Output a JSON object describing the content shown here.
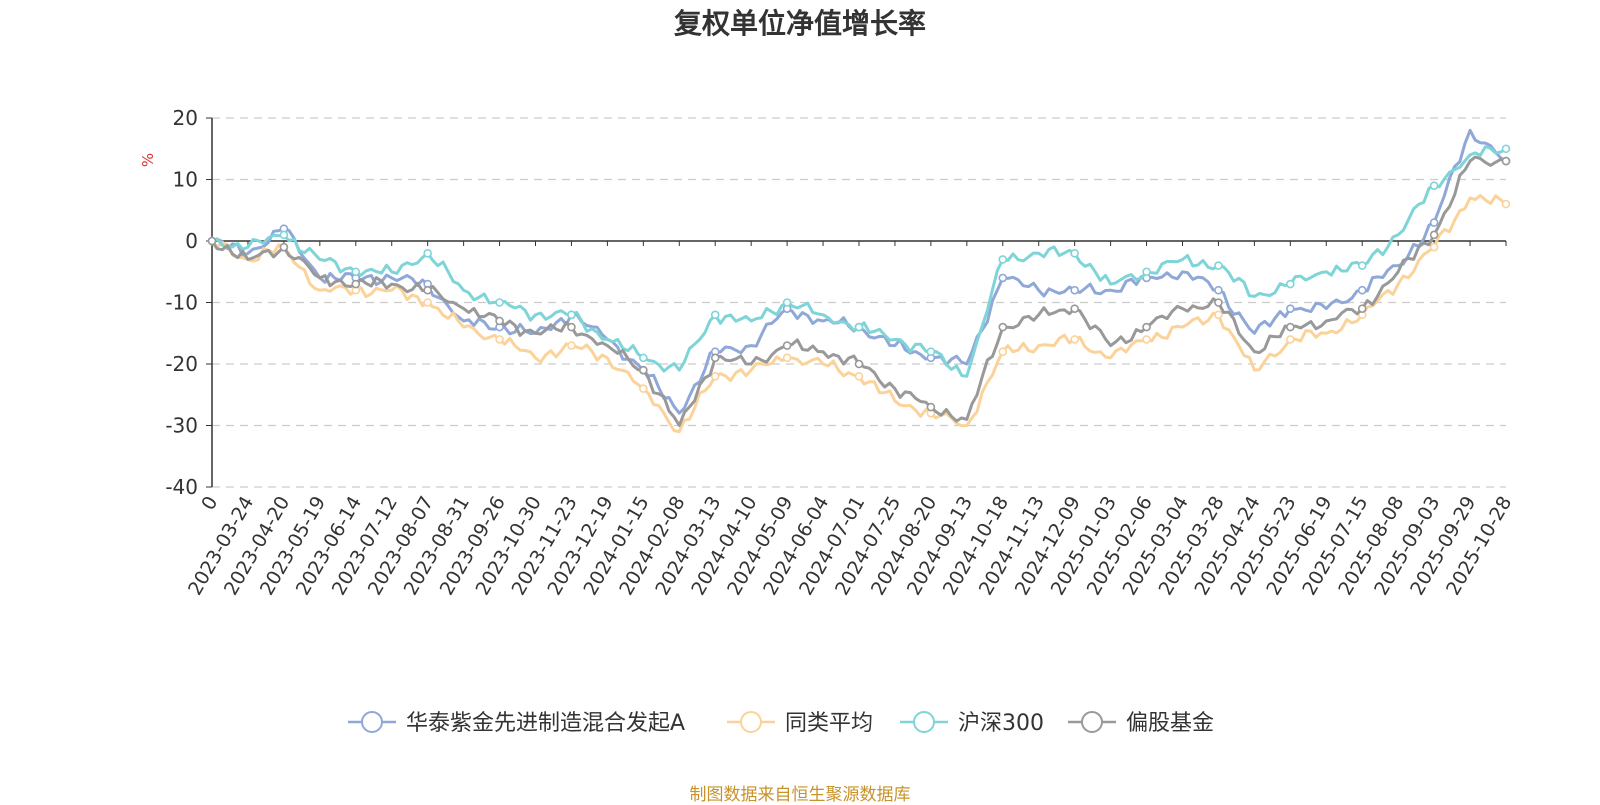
{
  "chart_data": {
    "type": "line",
    "title": "复权单位净值增长率",
    "ylabel": "%",
    "xlabel": "",
    "ylim": [
      -40,
      20
    ],
    "yticks": [
      20,
      10,
      0,
      -10,
      -20,
      -30,
      -40
    ],
    "grid": true,
    "legend_position": "bottom-center",
    "categories": [
      "0",
      "2023-03-24",
      "2023-04-20",
      "2023-05-19",
      "2023-06-14",
      "2023-07-12",
      "2023-08-07",
      "2023-08-31",
      "2023-09-26",
      "2023-10-30",
      "2023-11-23",
      "2023-12-19",
      "2024-01-15",
      "2024-02-08",
      "2024-03-13",
      "2024-04-10",
      "2024-05-09",
      "2024-06-04",
      "2024-07-01",
      "2024-07-25",
      "2024-08-20",
      "2024-09-13",
      "2024-10-18",
      "2024-11-13",
      "2024-12-09",
      "2025-01-03",
      "2025-02-06",
      "2025-03-04",
      "2025-03-28",
      "2025-04-24",
      "2025-05-23",
      "2025-06-19",
      "2025-07-15",
      "2025-08-08",
      "2025-09-03",
      "2025-09-29",
      "2025-10-28"
    ],
    "series": [
      {
        "name": "华泰紫金先进制造混合发起A",
        "color": "#8fa8d8",
        "values": [
          0,
          -2,
          2,
          -6,
          -6,
          -6,
          -7,
          -13,
          -14,
          -15,
          -12,
          -16,
          -21,
          -28,
          -18,
          -17,
          -11,
          -13,
          -14,
          -17,
          -19,
          -20,
          -6,
          -8,
          -8,
          -8,
          -6,
          -5,
          -8,
          -15,
          -11,
          -11,
          -8,
          -4,
          3,
          18,
          13
        ]
      },
      {
        "name": "同类平均",
        "color": "#fbd39a",
        "values": [
          0,
          -3,
          -1,
          -8,
          -8,
          -8,
          -10,
          -14,
          -16,
          -19,
          -17,
          -19,
          -24,
          -31,
          -22,
          -21,
          -19,
          -20,
          -22,
          -26,
          -28,
          -30,
          -18,
          -17,
          -16,
          -19,
          -16,
          -14,
          -12,
          -21,
          -16,
          -15,
          -12,
          -7,
          -1,
          7,
          6
        ]
      },
      {
        "name": "沪深300",
        "color": "#7fd4d8",
        "values": [
          0,
          -1,
          1,
          -3,
          -5,
          -5,
          -2,
          -8,
          -10,
          -12,
          -12,
          -16,
          -19,
          -21,
          -12,
          -13,
          -10,
          -12,
          -14,
          -16,
          -18,
          -22,
          -3,
          -2,
          -2,
          -7,
          -5,
          -3,
          -4,
          -9,
          -7,
          -5,
          -4,
          1,
          9,
          14,
          15
        ]
      },
      {
        "name": "偏股基金",
        "color": "#999999",
        "values": [
          0,
          -3,
          -1,
          -6,
          -7,
          -7,
          -8,
          -11,
          -13,
          -15,
          -14,
          -17,
          -21,
          -30,
          -19,
          -20,
          -17,
          -18,
          -20,
          -24,
          -27,
          -29,
          -14,
          -12,
          -11,
          -17,
          -14,
          -11,
          -10,
          -18,
          -14,
          -13,
          -11,
          -5,
          1,
          13,
          13
        ]
      }
    ]
  },
  "source_note": "制图数据来自恒生聚源数据库"
}
